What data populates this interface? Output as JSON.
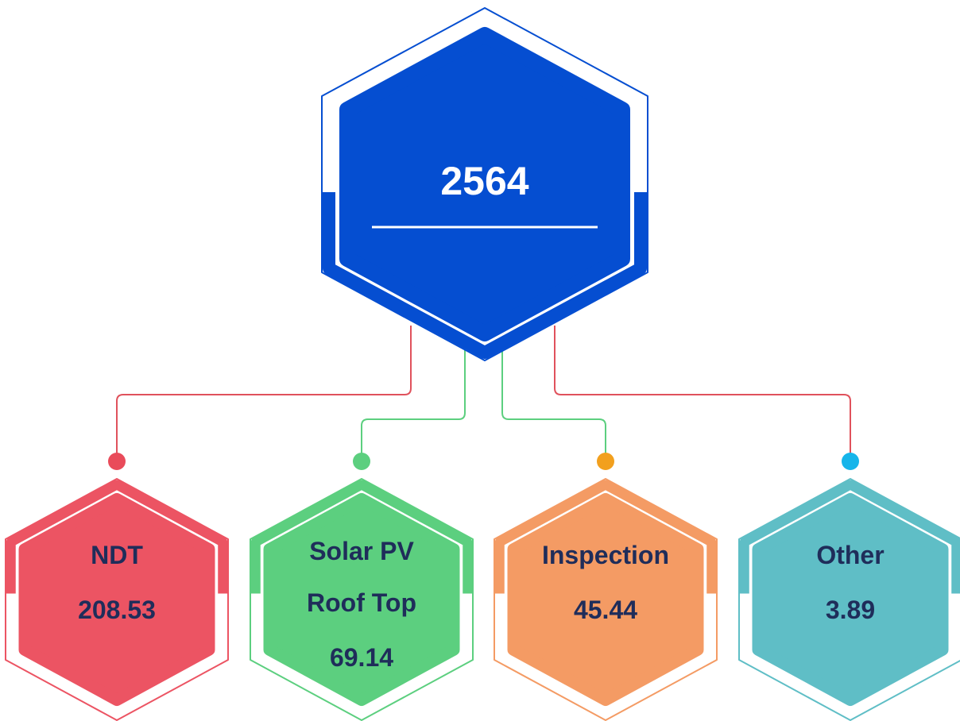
{
  "root": {
    "value": 2564,
    "color": "#054ed1"
  },
  "children": [
    {
      "label": "NDT",
      "value": 208.53,
      "color": "#ec5463",
      "dot": "#e94b5a",
      "line": "#e0525c"
    },
    {
      "label": "Solar PV Roof Top",
      "value": 69.14,
      "color": "#5ccf7f",
      "dot": "#5ccf7f",
      "line": "#5ccf7f"
    },
    {
      "label": "Inspection",
      "value": 45.44,
      "color": "#f49b64",
      "dot": "#f2a01e",
      "line": "#5ccf7f"
    },
    {
      "label": "Other",
      "value": 3.89,
      "color": "#5fbec6",
      "dot": "#16b5ea",
      "line": "#e0525c"
    }
  ]
}
